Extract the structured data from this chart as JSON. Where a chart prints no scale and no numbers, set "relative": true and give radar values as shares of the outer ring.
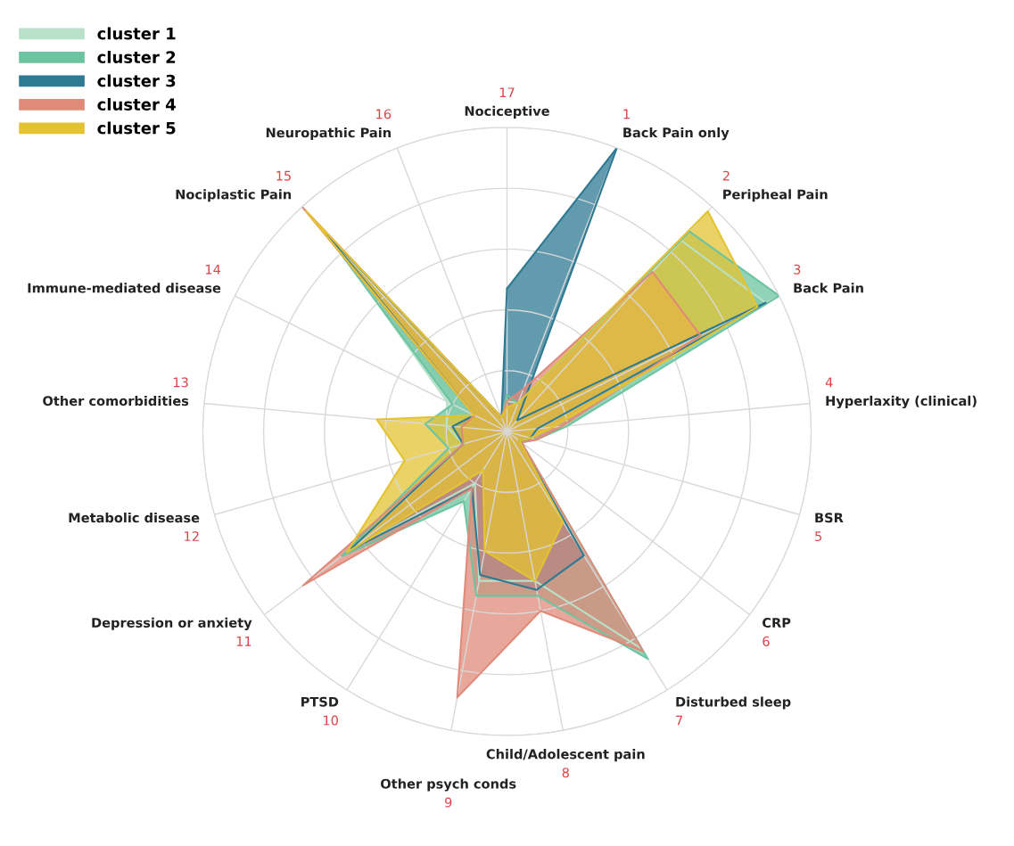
{
  "chart_data": {
    "type": "radar",
    "relative": true,
    "grid": true,
    "legend": "top left",
    "categories": [
      "Nociceptive",
      "Back Pain only",
      "Peripheal Pain",
      "Back Pain",
      "Hyperlaxity (clinical)",
      "BSR",
      "CRP",
      "Disturbed sleep",
      "Child/Adolescent pain",
      "Other psych conds",
      "PTSD",
      "Depression or anxiety",
      "Metabolic disease",
      "Other comorbidities",
      "Immune-mediated disease",
      "Nociplastic Pain",
      "Neuropathic Pain"
    ],
    "series": [
      {
        "name": "cluster 1",
        "color": "#b9e0c8",
        "values": [
          0.1,
          0.1,
          0.85,
          0.95,
          0.1,
          0.08,
          0.05,
          0.84,
          0.5,
          0.5,
          0.2,
          0.65,
          0.15,
          0.2,
          0.22,
          0.85,
          0.05
        ]
      },
      {
        "name": "cluster 2",
        "color": "#6cc4a1",
        "values": [
          0.12,
          0.1,
          0.89,
          1.0,
          0.2,
          0.1,
          0.06,
          0.88,
          0.55,
          0.55,
          0.27,
          0.68,
          0.2,
          0.27,
          0.2,
          0.9,
          0.05
        ]
      },
      {
        "name": "cluster 3",
        "color": "#2e7a93",
        "values": [
          0.47,
          1.0,
          0.05,
          0.95,
          0.1,
          0.08,
          0.05,
          0.48,
          0.53,
          0.48,
          0.22,
          0.65,
          0.15,
          0.18,
          0.12,
          0.9,
          0.05
        ]
      },
      {
        "name": "cluster 4",
        "color": "#e08a7a",
        "values": [
          0.1,
          0.15,
          0.71,
          0.71,
          0.18,
          0.1,
          0.06,
          0.85,
          0.6,
          0.89,
          0.22,
          0.84,
          0.15,
          0.15,
          0.12,
          1.0,
          0.05
        ]
      },
      {
        "name": "cluster 5",
        "color": "#e4c333",
        "values": [
          0.08,
          0.1,
          0.98,
          0.92,
          0.15,
          0.08,
          0.05,
          0.35,
          0.5,
          0.4,
          0.15,
          0.66,
          0.35,
          0.43,
          0.12,
          0.98,
          0.05
        ]
      }
    ],
    "annotations": [
      {
        "text": "17",
        "x": "Nociceptive"
      },
      {
        "text": "1",
        "x": "Back Pain only"
      },
      {
        "text": "2",
        "x": "Peripheal Pain"
      },
      {
        "text": "3",
        "x": "Back Pain"
      },
      {
        "text": "4",
        "x": "Hyperlaxity (clinical)"
      },
      {
        "text": "5",
        "x": "BSR"
      },
      {
        "text": "6",
        "x": "CRP"
      },
      {
        "text": "7",
        "x": "Disturbed sleep"
      },
      {
        "text": "8",
        "x": "Child/Adolescent pain"
      },
      {
        "text": "9",
        "x": "Other psych conds"
      },
      {
        "text": "10",
        "x": "PTSD"
      },
      {
        "text": "11",
        "x": "Depression or anxiety"
      },
      {
        "text": "12",
        "x": "Metabolic disease"
      },
      {
        "text": "13",
        "x": "Other comorbidities"
      },
      {
        "text": "14",
        "x": "Immune-mediated disease"
      },
      {
        "text": "15",
        "x": "Nociplastic Pain"
      },
      {
        "text": "16",
        "x": "Neuropathic Pain"
      }
    ]
  }
}
